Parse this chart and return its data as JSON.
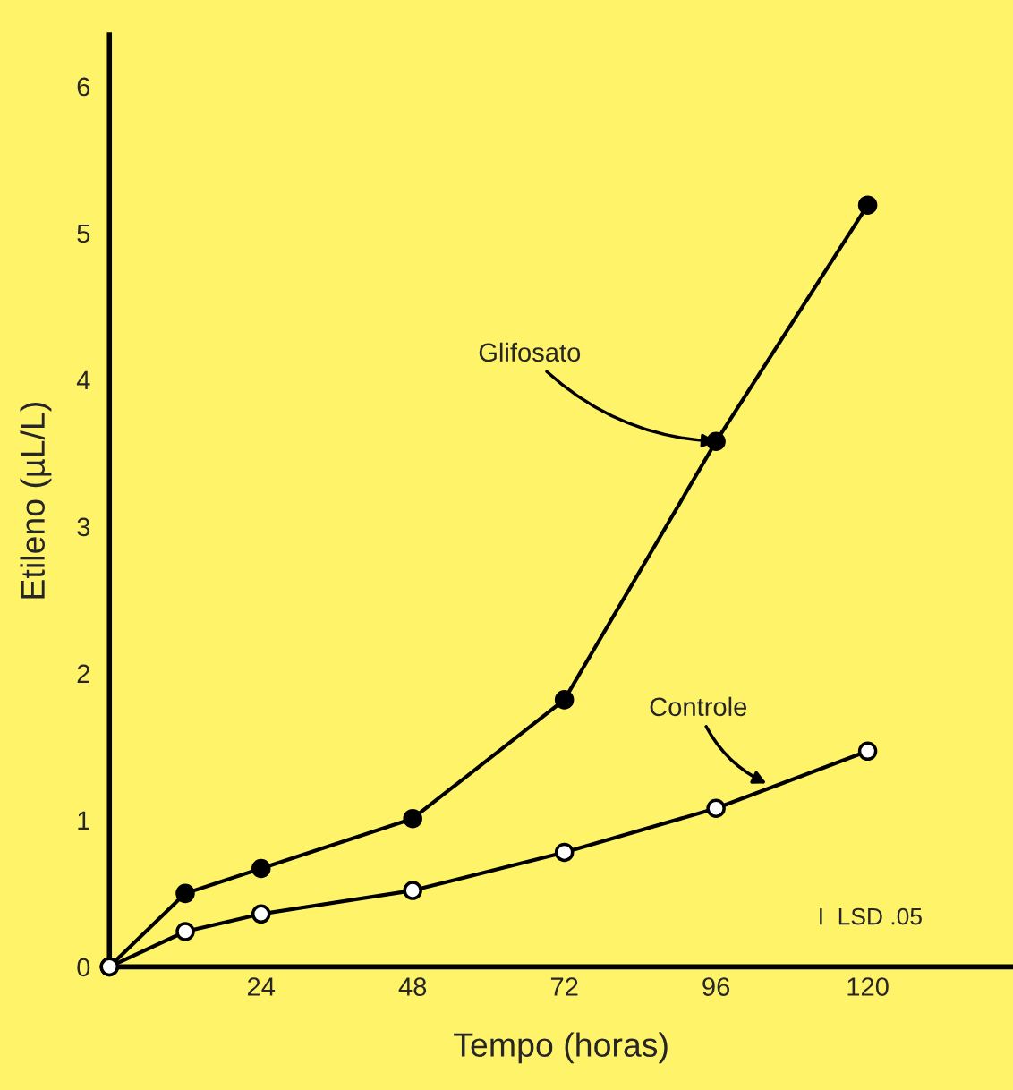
{
  "chart_data": {
    "type": "line",
    "xlabel": "Tempo (horas)",
    "ylabel": "Etileno (µL/L)",
    "xlim": [
      0,
      143
    ],
    "ylim": [
      0,
      6.35
    ],
    "xticks": [
      24,
      48,
      72,
      96,
      120
    ],
    "yticks": [
      0,
      1,
      2,
      3,
      4,
      5,
      6
    ],
    "grid": false,
    "legend": false,
    "line_style": "solid",
    "series": [
      {
        "color": "#000000",
        "marker": "circle",
        "x": [
          0,
          12,
          24,
          48,
          72,
          96,
          120
        ],
        "values": [
          0,
          0.5,
          0.67,
          1.01,
          1.82,
          3.58,
          5.19
        ]
      },
      {
        "color": "#000000",
        "marker": "circle",
        "x": [
          0,
          12,
          24,
          48,
          72,
          96,
          120
        ],
        "values": [
          0,
          0.24,
          0.36,
          0.52,
          0.78,
          1.08,
          1.47
        ]
      }
    ],
    "annotations": [
      {
        "text": "Glifosato",
        "x": 96,
        "y": 3.58
      },
      {
        "text": "Controle",
        "x": 104,
        "y": 1.25
      },
      "I  LSD .05"
    ]
  }
}
